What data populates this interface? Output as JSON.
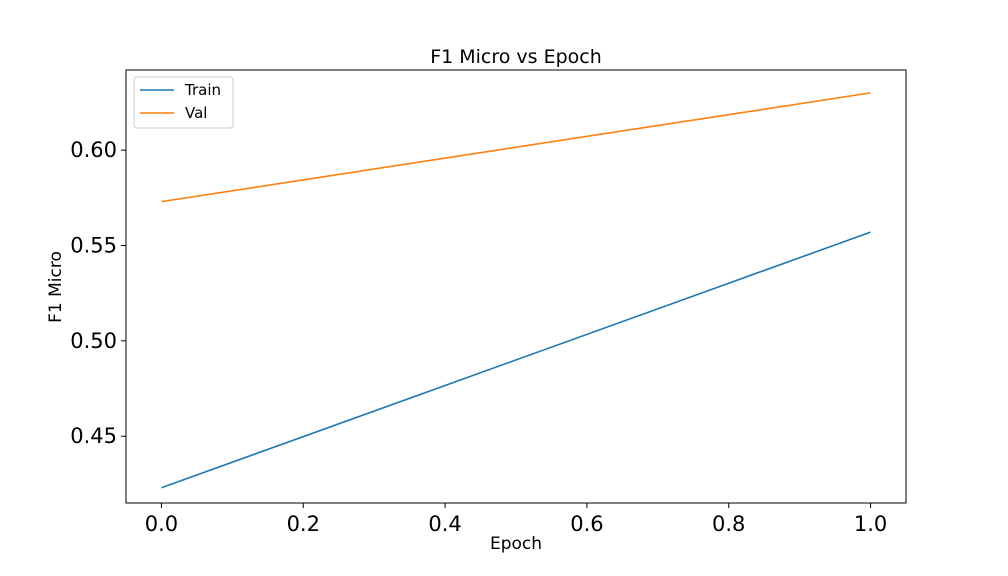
{
  "chart_data": {
    "type": "line",
    "title": "F1 Micro vs Epoch",
    "xlabel": "Epoch",
    "ylabel": "F1 Micro",
    "x": [
      0.0,
      1.0
    ],
    "xlim": [
      -0.05,
      1.05
    ],
    "ylim": [
      0.415,
      0.642
    ],
    "xticks": [
      0.0,
      0.2,
      0.4,
      0.6,
      0.8,
      1.0
    ],
    "xtick_labels": [
      "0.0",
      "0.2",
      "0.4",
      "0.6",
      "0.8",
      "1.0"
    ],
    "yticks": [
      0.45,
      0.5,
      0.55,
      0.6
    ],
    "ytick_labels": [
      "0.45",
      "0.50",
      "0.55",
      "0.60"
    ],
    "grid": false,
    "legend_position": "top-left",
    "series": [
      {
        "name": "Train",
        "color": "#1f77b4",
        "values": [
          0.423,
          0.557
        ]
      },
      {
        "name": "Val",
        "color": "#ff7f0e",
        "values": [
          0.573,
          0.63
        ]
      }
    ]
  }
}
